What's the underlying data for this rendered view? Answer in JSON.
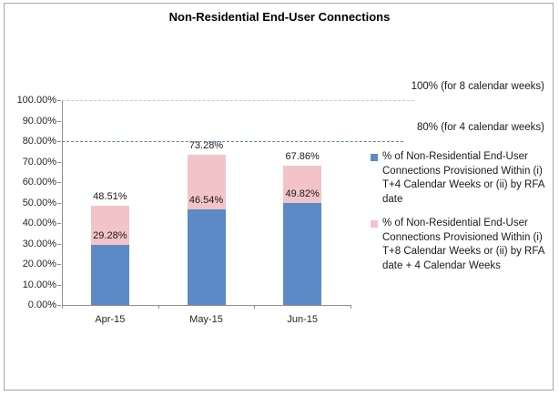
{
  "window": {
    "background": "#FFFFFF",
    "border_color": "#A6A6A6"
  },
  "title": "Non-Residential End-User Connections",
  "chart_data": {
    "type": "bar",
    "stacked": true,
    "title": "Non-Residential End-User Connections",
    "categories": [
      "Apr-15",
      "May-15",
      "Jun-15"
    ],
    "series": [
      {
        "name": "% of Non-Residential End-User Connections Provisioned Within (i) T+4 Calendar Weeks or (ii) by RFA date",
        "color": "#5B8AC6",
        "values": [
          29.28,
          46.54,
          49.82
        ],
        "value_labels": [
          "29.28%",
          "46.54%",
          "49.82%"
        ]
      },
      {
        "name": "% of Non-Residential End-User Connections Provisioned Within (i) T+8 Calendar Weeks or (ii) by RFA date + 4 Calendar Weeks",
        "color": "#F2C4C7",
        "values": [
          19.23,
          26.74,
          18.04
        ]
      }
    ],
    "stack_totals": [
      48.51,
      73.28,
      67.86
    ],
    "total_labels": [
      "48.51%",
      "73.28%",
      "67.86%"
    ],
    "xlabel": "",
    "ylabel": "",
    "ylim": [
      0,
      100
    ],
    "ytick_labels": [
      "0.00%",
      "10.00%",
      "20.00%",
      "30.00%",
      "40.00%",
      "50.00%",
      "60.00%",
      "70.00%",
      "80.00%",
      "90.00%",
      "100.00%"
    ],
    "grid": false,
    "legend_position": "right",
    "ref_lines": [
      {
        "value": 100,
        "label": "100% (for 8 calendar weeks)",
        "color": "#E6BDC1",
        "style": "dashed"
      },
      {
        "value": 80,
        "label": "80% (for 4 calendar weeks)",
        "color": "#5B83C0",
        "style": "dashed"
      }
    ],
    "axis_color": "#8E8E8E",
    "text_color": "#1A1A1A"
  }
}
